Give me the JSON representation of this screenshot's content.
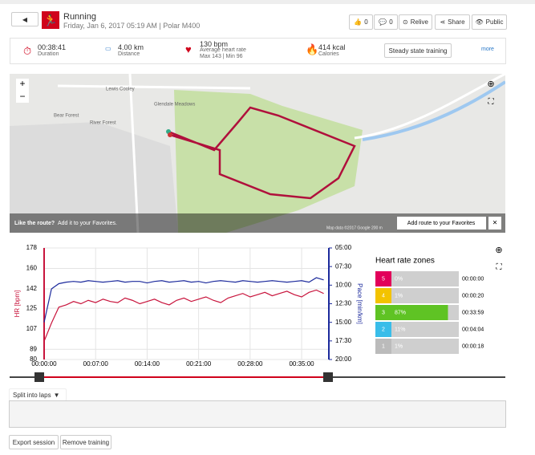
{
  "header": {
    "sport": "Running",
    "date": "Friday, Jan 6, 2017 05:19 AM | Polar M400",
    "likes": "0",
    "comments": "0",
    "relive": "Relive",
    "share": "Share",
    "visibility": "Public"
  },
  "summary": {
    "duration": {
      "value": "00:38:41",
      "label": "Duration"
    },
    "distance": {
      "value": "4.00 km",
      "label": "Distance"
    },
    "heart_rate": {
      "value": "130 bpm",
      "label": "Average heart rate",
      "detail": "Max 143 | Min 96"
    },
    "calories": {
      "value": "414 kcal",
      "label": "Calories"
    },
    "button": "Steady state training",
    "more": "more"
  },
  "map": {
    "zoom_in": "+",
    "zoom_out": "−",
    "labels": [
      "Lewis Cooley",
      "Bear Forest",
      "River Forest",
      "Glendale Meadows"
    ],
    "like_route": "Like the route?",
    "add_favorites": "Add it to your Favorites.",
    "add_route_button": "Add route to your Favorites",
    "close": "×",
    "attribution": "Map data ©2017 Google  200 m"
  },
  "chart_data": [
    {
      "type": "line",
      "ylabel": "HR [bpm]",
      "y2label": "Pace [min/km]",
      "x": [
        0,
        1,
        2,
        3,
        4,
        5,
        6,
        7,
        8,
        9,
        10,
        11,
        12,
        13,
        14,
        15,
        16,
        17,
        18,
        19,
        20,
        21,
        22,
        23,
        24,
        25,
        26,
        27,
        28,
        29,
        30,
        31,
        32,
        33,
        34,
        35,
        36,
        37,
        38
      ],
      "xlim": [
        0,
        38.7
      ],
      "xticks": [
        {
          "value": 0,
          "label": "00:00:00"
        },
        {
          "value": 7,
          "label": "00:07:00"
        },
        {
          "value": 14,
          "label": "00:14:00"
        },
        {
          "value": 21,
          "label": "00:21:00"
        },
        {
          "value": 28,
          "label": "00:28:00"
        },
        {
          "value": 35,
          "label": "00:35:00"
        }
      ],
      "ylim": [
        80,
        178
      ],
      "yticks": [
        178,
        160,
        142,
        125,
        107,
        89,
        80
      ],
      "y2lim": [
        5,
        20
      ],
      "y2_reversed": true,
      "y2ticks": [
        {
          "value": 5,
          "label": "05:00"
        },
        {
          "value": 7.5,
          "label": "07:30"
        },
        {
          "value": 10,
          "label": "10:00"
        },
        {
          "value": 12.5,
          "label": "12:30"
        },
        {
          "value": 15,
          "label": "15:00"
        },
        {
          "value": 17.5,
          "label": "17:30"
        },
        {
          "value": 20,
          "label": "20:00"
        }
      ],
      "grid": true,
      "series": [
        {
          "name": "HR",
          "color": "#c8143c",
          "values": [
            96,
            112,
            126,
            128,
            131,
            129,
            132,
            130,
            133,
            131,
            130,
            134,
            132,
            129,
            131,
            133,
            130,
            128,
            132,
            134,
            131,
            133,
            135,
            132,
            130,
            134,
            136,
            138,
            135,
            137,
            139,
            136,
            138,
            140,
            137,
            135,
            139,
            141,
            138
          ]
        },
        {
          "name": "Pace",
          "color": "#1c2a9c",
          "axis": "y2",
          "values": [
            15.0,
            10.5,
            9.8,
            9.6,
            9.5,
            9.6,
            9.4,
            9.5,
            9.6,
            9.5,
            9.4,
            9.6,
            9.5,
            9.5,
            9.7,
            9.5,
            9.4,
            9.6,
            9.5,
            9.4,
            9.6,
            9.5,
            9.7,
            9.5,
            9.4,
            9.5,
            9.6,
            9.4,
            9.5,
            9.6,
            9.5,
            9.4,
            9.5,
            9.6,
            9.5,
            9.4,
            9.6,
            9.0,
            9.3
          ]
        }
      ]
    },
    {
      "type": "hbar",
      "title": "Heart rate zones",
      "categories": [
        "5",
        "4",
        "3",
        "2",
        "1"
      ],
      "values": [
        0,
        1,
        87,
        11,
        1
      ],
      "value_labels": [
        "0%",
        "1%",
        "87%",
        "11%",
        "1%"
      ],
      "xlim": [
        0,
        100
      ],
      "colors": [
        "#e2005a",
        "#f3c300",
        "#5fc324",
        "#39bde9",
        "#bbbbbb"
      ],
      "durations": [
        "00:00:00",
        "00:00:20",
        "00:33:59",
        "00:04:04",
        "00:00:18"
      ]
    }
  ],
  "split_laps": "Split into laps",
  "actions": [
    "Export session",
    "Remove training"
  ]
}
